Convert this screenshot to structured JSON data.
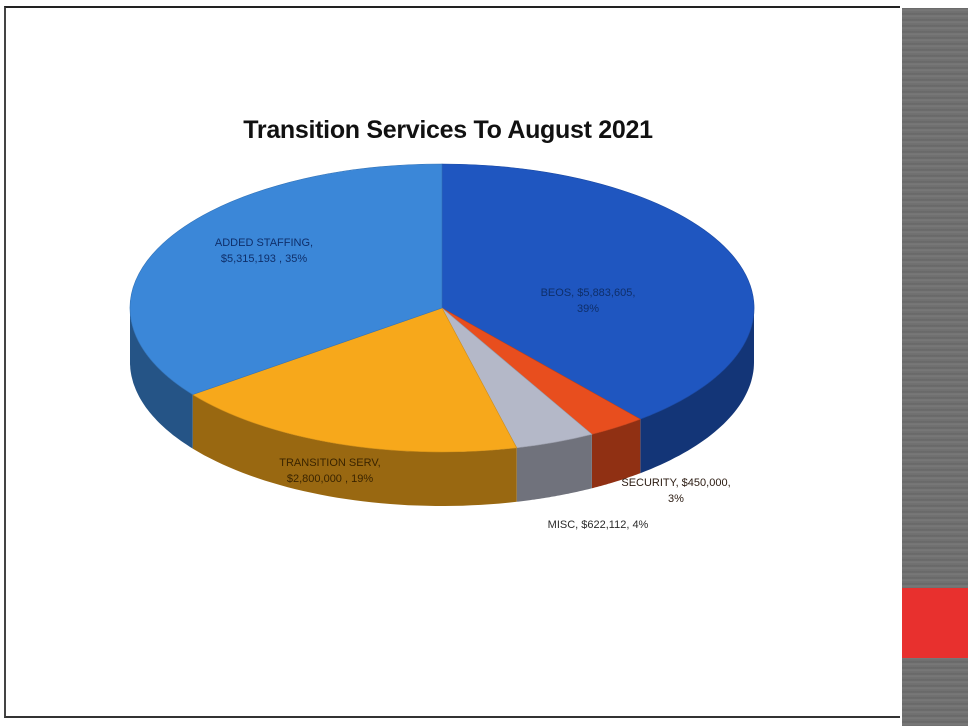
{
  "chart_data": {
    "type": "pie",
    "title": "Transition Services To August 2021",
    "slices": [
      {
        "name": "BEOS",
        "value": 5883605,
        "label_lines": [
          "BEOS, $5,883,605,",
          "39%"
        ],
        "color": "#1f56c0"
      },
      {
        "name": "SECURITY",
        "value": 450000,
        "label_lines": [
          "SECURITY, $450,000,",
          "3%"
        ],
        "color": "#e84e1e"
      },
      {
        "name": "MISC",
        "value": 622112,
        "label_lines": [
          "MISC, $622,112, 4%"
        ],
        "color": "#b4b8c8"
      },
      {
        "name": "TRANSITION SERV",
        "value": 2800000,
        "label_lines": [
          "TRANSITION SERV,",
          "$2,800,000 , 19%"
        ],
        "color": "#f7a81b"
      },
      {
        "name": "ADDED STAFFING",
        "value": 5315193,
        "label_lines": [
          "ADDED STAFFING,",
          "$5,315,193 , 35%"
        ],
        "color": "#3b87d8"
      }
    ]
  }
}
